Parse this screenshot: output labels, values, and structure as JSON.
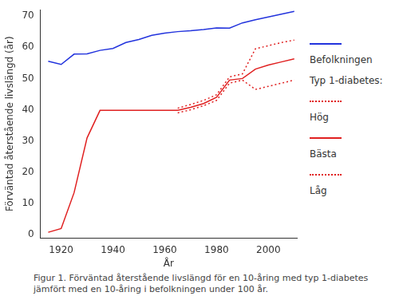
{
  "chart_data": {
    "type": "line",
    "x_label": "År",
    "y_label": "Förväntad återstående livslängd (år)",
    "caption": "Figur 1. Förväntad återstående livslängd för en 10-åring med typ 1-diabetes jämfört med en 10-åring i befolkningen under 100 år.",
    "legend": "right",
    "legend_title": "Typ 1-diabetes:",
    "grid": false,
    "x": [
      1915,
      1920,
      1925,
      1930,
      1935,
      1940,
      1945,
      1950,
      1955,
      1960,
      1965,
      1970,
      1975,
      1980,
      1985,
      1990,
      1995,
      2000,
      2005,
      2010
    ],
    "xlim": [
      1912,
      2011
    ],
    "xticks": [
      1920,
      1940,
      1960,
      1980,
      2000
    ],
    "ylim": [
      -1,
      72
    ],
    "yticks": [
      0,
      10,
      20,
      30,
      40,
      50,
      60,
      70
    ],
    "series": [
      {
        "name": "Befolkningen",
        "color": "#2233dd",
        "line_style": "solid",
        "values": [
          55.5,
          54.5,
          57.8,
          57.9,
          59.0,
          59.6,
          61.5,
          62.5,
          63.8,
          64.5,
          65.0,
          65.3,
          65.7,
          66.2,
          66.1,
          67.8,
          68.8,
          69.7,
          70.6,
          71.5
        ]
      },
      {
        "name": "Hög",
        "color": "#e02020",
        "line_style": "dotted",
        "values": [
          null,
          null,
          null,
          null,
          null,
          null,
          null,
          null,
          null,
          null,
          40.5,
          41.7,
          43.0,
          44.8,
          50.5,
          51.5,
          59.5,
          60.5,
          61.5,
          62.3
        ]
      },
      {
        "name": "Bästa",
        "color": "#e02020",
        "line_style": "solid",
        "values": [
          0.8,
          2.0,
          13.5,
          31.0,
          39.8,
          39.8,
          39.8,
          39.8,
          39.8,
          39.8,
          39.8,
          40.8,
          42.0,
          44.0,
          49.5,
          50.0,
          53.0,
          54.3,
          55.3,
          56.3
        ]
      },
      {
        "name": "Låg",
        "color": "#e02020",
        "line_style": "dotted",
        "values": [
          null,
          null,
          null,
          null,
          null,
          null,
          null,
          null,
          null,
          null,
          39.0,
          40.0,
          41.3,
          43.0,
          48.5,
          49.5,
          46.5,
          47.5,
          48.5,
          49.5
        ]
      }
    ]
  }
}
